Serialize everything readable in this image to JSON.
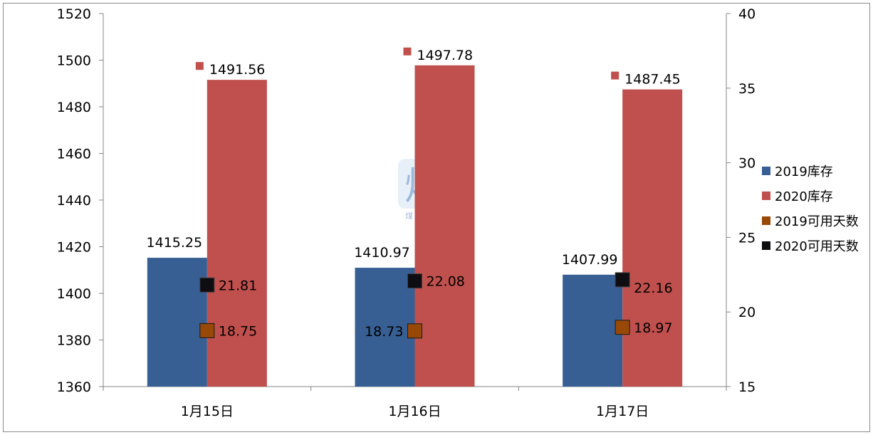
{
  "chart_data": {
    "type": "bar",
    "categories": [
      "1月15日",
      "1月16日",
      "1月17日"
    ],
    "y_left": {
      "ylim": [
        1360,
        1520
      ],
      "ticks": [
        1360,
        1380,
        1400,
        1420,
        1440,
        1460,
        1480,
        1500,
        1520
      ]
    },
    "y_right": {
      "ylim": [
        15,
        40
      ],
      "ticks": [
        15,
        20,
        25,
        30,
        35,
        40
      ]
    },
    "series": [
      {
        "name": "2019库存",
        "kind": "bar",
        "axis": "left",
        "color": "#385f94",
        "values": [
          1415.25,
          1410.97,
          1407.99
        ],
        "labels": [
          "1415.25",
          "1410.97",
          "1407.99"
        ]
      },
      {
        "name": "2020库存",
        "kind": "bar",
        "axis": "left",
        "color": "#c0504d",
        "values": [
          1491.56,
          1497.78,
          1487.45
        ],
        "labels": [
          "1491.56",
          "1497.78",
          "1487.45"
        ]
      },
      {
        "name": "2019可用天数",
        "kind": "marker",
        "axis": "right",
        "color": "#984807",
        "values": [
          18.75,
          18.73,
          18.97
        ],
        "labels": [
          "18.75",
          "18.73",
          "18.97"
        ]
      },
      {
        "name": "2020可用天数",
        "kind": "marker",
        "axis": "right",
        "color": "#0d0d12",
        "values": [
          21.81,
          22.08,
          22.16
        ],
        "labels": [
          "21.81",
          "22.08",
          "22.16"
        ]
      }
    ],
    "legend_position": "right",
    "grid": false
  },
  "watermark": {
    "glyph": "煤",
    "text": "煤炭江湖"
  }
}
